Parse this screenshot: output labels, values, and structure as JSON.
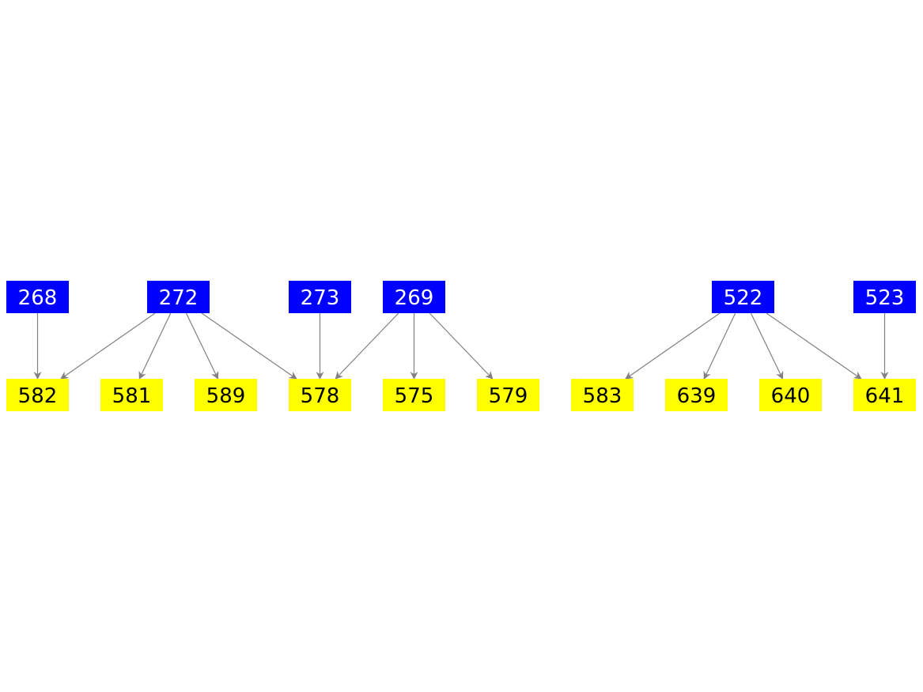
{
  "colors": {
    "source": "#0000ff",
    "target": "#ffff00",
    "edge": "#808080",
    "source_text": "#ffffff",
    "target_text": "#000000"
  },
  "sources": [
    "268",
    "272",
    "273",
    "269",
    "522",
    "523"
  ],
  "targets": [
    "582",
    "581",
    "589",
    "578",
    "575",
    "579",
    "583",
    "639",
    "640",
    "641"
  ],
  "edges": [
    [
      "268",
      "582"
    ],
    [
      "272",
      "582"
    ],
    [
      "272",
      "581"
    ],
    [
      "272",
      "589"
    ],
    [
      "272",
      "578"
    ],
    [
      "273",
      "578"
    ],
    [
      "269",
      "578"
    ],
    [
      "269",
      "575"
    ],
    [
      "269",
      "579"
    ],
    [
      "522",
      "583"
    ],
    [
      "522",
      "639"
    ],
    [
      "522",
      "640"
    ],
    [
      "522",
      "641"
    ],
    [
      "523",
      "641"
    ]
  ]
}
